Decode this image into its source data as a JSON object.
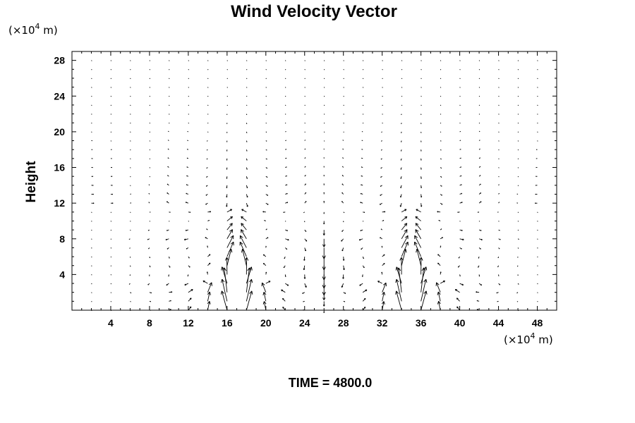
{
  "chart_data": {
    "type": "vector-field",
    "title": "Wind Velocity Vector",
    "ylabel": "Height",
    "xlabel": "",
    "y_unit": {
      "prefix": "(×10",
      "exponent": "4",
      "suffix": " m)"
    },
    "x_unit": {
      "prefix": "(×10",
      "exponent": "4",
      "suffix": " m)"
    },
    "footer": "TIME = 4800.0",
    "xlim": [
      0,
      50
    ],
    "ylim": [
      0,
      29
    ],
    "x_ticks": [
      4,
      8,
      12,
      16,
      20,
      24,
      28,
      32,
      36,
      40,
      44,
      48
    ],
    "y_ticks": [
      4,
      8,
      12,
      16,
      20,
      24,
      28
    ],
    "grid": false,
    "grid_spacing": {
      "x": 2,
      "y": 2
    },
    "grid_range": {
      "x": [
        2,
        48
      ],
      "y": [
        0,
        28
      ]
    },
    "circulation_cells": [
      {
        "center_x": 17,
        "center_y": 4,
        "top": 11,
        "half_width": 8
      },
      {
        "center_x": 35,
        "center_y": 4,
        "top": 11,
        "half_width": 8
      }
    ],
    "updraft_columns_x": [
      17,
      35
    ],
    "downdraft_column_x": 26,
    "color": "#000000"
  }
}
